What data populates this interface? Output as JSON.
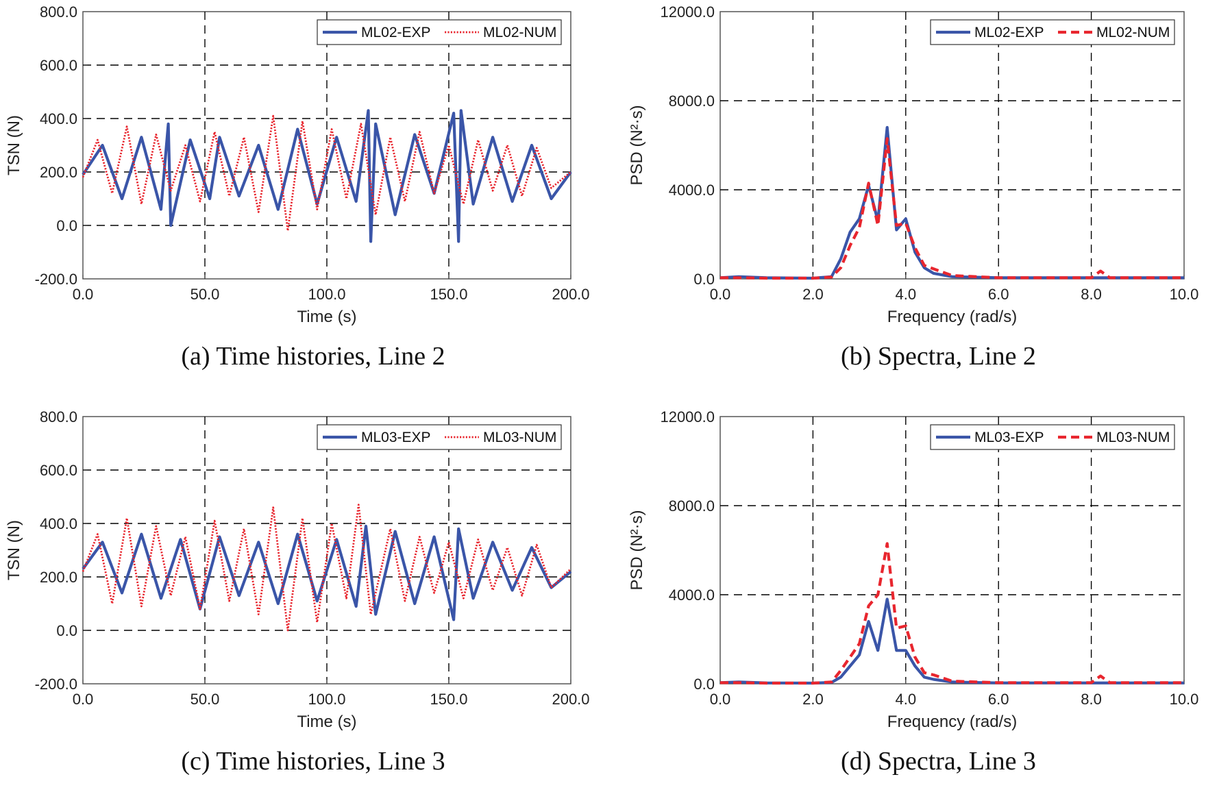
{
  "colors": {
    "exp": "#3a55a8",
    "num": "#e8262e",
    "grid": "#000000",
    "axis": "#555555"
  },
  "chart_data": [
    {
      "type": "line",
      "caption": "(a) Time histories, Line 2",
      "xlabel": "Time (s)",
      "ylabel": "TSN (N)",
      "xlim": [
        0,
        200
      ],
      "ylim": [
        -200,
        800
      ],
      "xticks": [
        "0.0",
        "50.0",
        "100.0",
        "150.0",
        "200.0"
      ],
      "yticks": [
        "-200.0",
        "0.0",
        "200.0",
        "400.0",
        "600.0",
        "800.0"
      ],
      "grid": true,
      "legend": "top-right",
      "series": [
        {
          "name": "ML02-EXP",
          "style": "solid",
          "x": [
            0,
            8,
            16,
            24,
            32,
            35,
            36,
            44,
            52,
            56,
            64,
            72,
            80,
            88,
            96,
            104,
            112,
            117,
            118,
            120,
            128,
            136,
            144,
            152,
            154,
            155,
            160,
            168,
            176,
            184,
            192,
            200
          ],
          "y": [
            190,
            300,
            100,
            330,
            60,
            380,
            0,
            320,
            100,
            330,
            110,
            300,
            60,
            360,
            80,
            330,
            90,
            430,
            -60,
            380,
            40,
            340,
            120,
            420,
            -60,
            430,
            80,
            330,
            90,
            300,
            100,
            200
          ]
        },
        {
          "name": "ML02-NUM",
          "style": "dotted",
          "x": [
            0,
            6,
            12,
            18,
            24,
            30,
            36,
            42,
            48,
            54,
            60,
            66,
            72,
            78,
            84,
            90,
            96,
            102,
            108,
            114,
            120,
            126,
            132,
            138,
            144,
            150,
            156,
            162,
            168,
            174,
            180,
            186,
            192,
            200
          ],
          "y": [
            180,
            320,
            120,
            370,
            80,
            340,
            130,
            300,
            90,
            350,
            110,
            330,
            50,
            410,
            -20,
            390,
            60,
            360,
            100,
            380,
            40,
            330,
            90,
            350,
            120,
            300,
            80,
            320,
            130,
            300,
            110,
            290,
            140,
            200
          ]
        }
      ]
    },
    {
      "type": "line",
      "caption": "(b) Spectra, Line 2",
      "xlabel": "Frequency (rad/s)",
      "ylabel": "PSD (N²·s)",
      "xlim": [
        0,
        10
      ],
      "ylim": [
        0,
        12000
      ],
      "xticks": [
        "0.0",
        "2.0",
        "4.0",
        "6.0",
        "8.0",
        "10.0"
      ],
      "yticks": [
        "0.0",
        "4000.0",
        "8000.0",
        "12000.0"
      ],
      "grid": true,
      "legend": "top-right",
      "series": [
        {
          "name": "ML02-EXP",
          "style": "solid",
          "x": [
            0,
            0.4,
            1.0,
            2.0,
            2.4,
            2.6,
            2.8,
            3.0,
            3.2,
            3.4,
            3.6,
            3.8,
            4.0,
            4.2,
            4.4,
            4.6,
            5.0,
            6.0,
            8.0,
            10.0
          ],
          "y": [
            50,
            100,
            50,
            30,
            100,
            900,
            2100,
            2700,
            4200,
            2600,
            6800,
            2200,
            2700,
            1200,
            500,
            250,
            100,
            50,
            50,
            50
          ]
        },
        {
          "name": "ML02-NUM",
          "style": "dashed",
          "x": [
            0,
            0.5,
            1.0,
            2.0,
            2.4,
            2.6,
            2.8,
            3.0,
            3.2,
            3.4,
            3.6,
            3.8,
            4.0,
            4.2,
            4.4,
            4.6,
            5.0,
            6.0,
            8.0,
            8.2,
            8.4,
            10.0
          ],
          "y": [
            50,
            50,
            30,
            30,
            80,
            500,
            1500,
            2300,
            4300,
            2400,
            6300,
            2400,
            2500,
            1400,
            600,
            450,
            150,
            50,
            50,
            350,
            50,
            50
          ]
        }
      ]
    },
    {
      "type": "line",
      "caption": "(c) Time histories, Line 3",
      "xlabel": "Time (s)",
      "ylabel": "TSN (N)",
      "xlim": [
        0,
        200
      ],
      "ylim": [
        -200,
        800
      ],
      "xticks": [
        "0.0",
        "50.0",
        "100.0",
        "150.0",
        "200.0"
      ],
      "yticks": [
        "-200.0",
        "0.0",
        "200.0",
        "400.0",
        "600.0",
        "800.0"
      ],
      "grid": true,
      "legend": "top-right",
      "series": [
        {
          "name": "ML03-EXP",
          "style": "solid",
          "x": [
            0,
            8,
            16,
            24,
            32,
            40,
            48,
            56,
            64,
            72,
            80,
            88,
            96,
            104,
            112,
            116,
            120,
            128,
            136,
            144,
            152,
            154,
            160,
            168,
            176,
            184,
            192,
            200
          ],
          "y": [
            230,
            330,
            140,
            360,
            120,
            340,
            80,
            350,
            130,
            330,
            100,
            360,
            110,
            340,
            90,
            390,
            60,
            370,
            100,
            350,
            40,
            380,
            120,
            330,
            150,
            310,
            160,
            220
          ]
        },
        {
          "name": "ML03-NUM",
          "style": "dotted",
          "x": [
            0,
            6,
            12,
            18,
            24,
            30,
            36,
            42,
            48,
            54,
            60,
            66,
            72,
            78,
            84,
            90,
            96,
            102,
            108,
            113,
            118,
            126,
            132,
            138,
            144,
            150,
            156,
            162,
            168,
            174,
            180,
            186,
            192,
            200
          ],
          "y": [
            220,
            360,
            100,
            420,
            90,
            390,
            130,
            350,
            80,
            410,
            110,
            380,
            60,
            460,
            0,
            420,
            30,
            400,
            120,
            470,
            60,
            380,
            110,
            350,
            140,
            330,
            120,
            340,
            150,
            310,
            130,
            320,
            160,
            230
          ]
        }
      ]
    },
    {
      "type": "line",
      "caption": "(d) Spectra, Line 3",
      "xlabel": "Frequency (rad/s)",
      "ylabel": "PSD (N²·s)",
      "xlim": [
        0,
        10
      ],
      "ylim": [
        0,
        12000
      ],
      "xticks": [
        "0.0",
        "2.0",
        "4.0",
        "6.0",
        "8.0",
        "10.0"
      ],
      "yticks": [
        "0.0",
        "4000.0",
        "8000.0",
        "12000.0"
      ],
      "grid": true,
      "legend": "top-right",
      "series": [
        {
          "name": "ML03-EXP",
          "style": "solid",
          "x": [
            0,
            0.4,
            1.0,
            2.0,
            2.4,
            2.6,
            2.8,
            3.0,
            3.2,
            3.4,
            3.6,
            3.8,
            4.0,
            4.2,
            4.4,
            4.6,
            5.0,
            6.0,
            8.0,
            10.0
          ],
          "y": [
            50,
            80,
            40,
            30,
            60,
            300,
            800,
            1300,
            2800,
            1500,
            3800,
            1500,
            1500,
            800,
            300,
            200,
            80,
            40,
            40,
            40
          ]
        },
        {
          "name": "ML03-NUM",
          "style": "dashed",
          "x": [
            0,
            0.5,
            1.0,
            2.0,
            2.4,
            2.6,
            2.8,
            3.0,
            3.2,
            3.4,
            3.6,
            3.8,
            4.0,
            4.2,
            4.4,
            4.6,
            5.0,
            6.0,
            8.0,
            8.2,
            8.4,
            10.0
          ],
          "y": [
            50,
            50,
            30,
            30,
            80,
            600,
            1200,
            1800,
            3500,
            4000,
            6300,
            2500,
            2600,
            1200,
            500,
            400,
            120,
            50,
            50,
            350,
            50,
            50
          ]
        }
      ]
    }
  ]
}
